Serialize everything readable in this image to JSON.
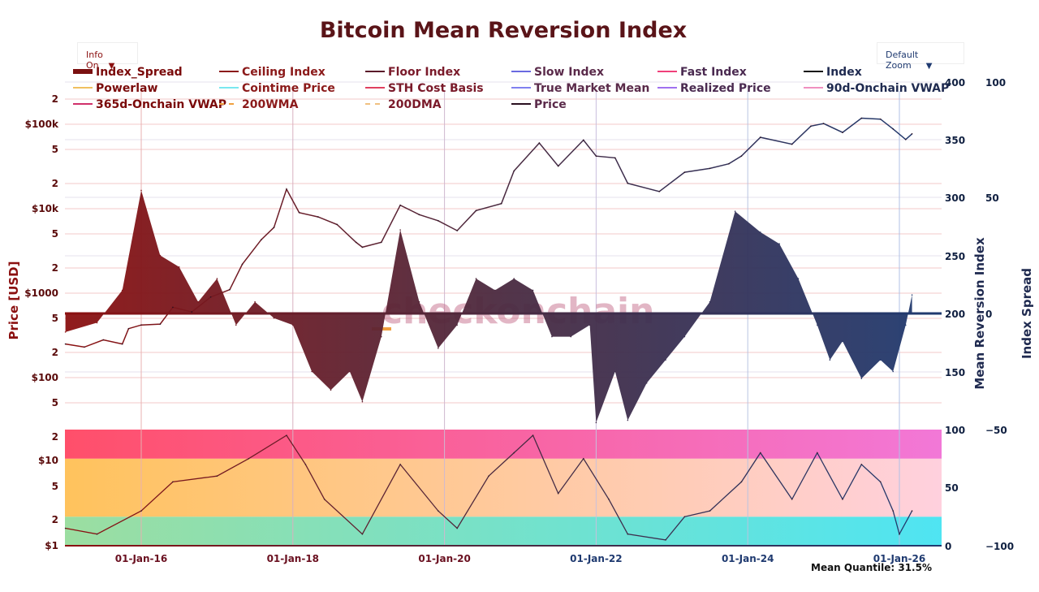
{
  "title": "Bitcoin Mean Reversion Index",
  "controls": {
    "info_label": "Info On",
    "zoom_label": "Default Zoom",
    "arrow": "▼"
  },
  "watermark": "checkonchain",
  "footer": {
    "mean_quantile": "Mean Quantile: 31.5%"
  },
  "chart_data": {
    "type": "line",
    "title": "Bitcoin Mean Reversion Index",
    "legend": {
      "placement": "top",
      "entries": [
        {
          "name": "Index_Spread",
          "color": "#7a1010",
          "style": "fill"
        },
        {
          "name": "Ceiling Index",
          "color": "#8b1a1a",
          "style": "solid"
        },
        {
          "name": "Floor Index",
          "color": "#5a1a2a",
          "style": "solid"
        },
        {
          "name": "Slow Index",
          "color": "#6a6ae0",
          "style": "solid"
        },
        {
          "name": "Fast Index",
          "color": "#f0407a",
          "style": "solid"
        },
        {
          "name": "Index",
          "color": "#111111",
          "style": "solid"
        },
        {
          "name": "Powerlaw",
          "color": "#f0c060",
          "style": "solid"
        },
        {
          "name": "Cointime Price",
          "color": "#7ae8f0",
          "style": "solid"
        },
        {
          "name": "STH Cost Basis",
          "color": "#e04060",
          "style": "solid"
        },
        {
          "name": "True Market Mean",
          "color": "#8080f0",
          "style": "solid"
        },
        {
          "name": "Realized Price",
          "color": "#a070f0",
          "style": "solid"
        },
        {
          "name": "90d-Onchain VWAP",
          "color": "#f090c0",
          "style": "solid"
        },
        {
          "name": "365d-Onchain VWAP",
          "color": "#d0306a",
          "style": "solid"
        },
        {
          "name": "200WMA",
          "color": "#f0a040",
          "style": "dash"
        },
        {
          "name": "200DMA",
          "color": "#f0c080",
          "style": "dash"
        },
        {
          "name": "Price",
          "color": "#2a1020",
          "style": "solid"
        }
      ]
    },
    "x_axis": {
      "type": "date",
      "range": [
        "2015-01",
        "2026-07"
      ],
      "tick_labels": [
        "01-Jan-16",
        "01-Jan-18",
        "01-Jan-20",
        "01-Jan-22",
        "01-Jan-24",
        "01-Jan-26"
      ]
    },
    "y_axes": {
      "price": {
        "label": "Price [USD]",
        "scale": "log",
        "top_ticks": [
          "2",
          "$100k",
          "5",
          "2",
          "$10k",
          "5",
          "2",
          "$1000",
          "5",
          "2",
          "$100",
          "5"
        ],
        "bottom_ticks": [
          "2",
          "$10",
          "5",
          "2",
          "$1"
        ]
      },
      "mean_reversion_index": {
        "label": "Mean Reversion Index",
        "ticks": [
          "400",
          "350",
          "300",
          "250",
          "200",
          "150",
          "100",
          "50",
          "0"
        ]
      },
      "index_spread": {
        "label": "Index Spread",
        "ticks": [
          "100",
          "50",
          "0",
          "−50",
          "−100"
        ],
        "range": [
          -100,
          100
        ]
      }
    },
    "series": [
      {
        "name": "Price",
        "unit": "USD",
        "points": [
          [
            "2015-01",
            250
          ],
          [
            "2015-04",
            230
          ],
          [
            "2015-07",
            280
          ],
          [
            "2015-10",
            250
          ],
          [
            "2015-11",
            380
          ],
          [
            "2016-01",
            420
          ],
          [
            "2016-04",
            430
          ],
          [
            "2016-06",
            680
          ],
          [
            "2016-09",
            600
          ],
          [
            "2016-12",
            900
          ],
          [
            "2017-03",
            1100
          ],
          [
            "2017-05",
            2200
          ],
          [
            "2017-08",
            4300
          ],
          [
            "2017-10",
            6000
          ],
          [
            "2017-12",
            17000
          ],
          [
            "2018-02",
            9000
          ],
          [
            "2018-05",
            8000
          ],
          [
            "2018-08",
            6500
          ],
          [
            "2018-11",
            4000
          ],
          [
            "2018-12",
            3500
          ],
          [
            "2019-03",
            4000
          ],
          [
            "2019-06",
            11000
          ],
          [
            "2019-09",
            8500
          ],
          [
            "2019-12",
            7200
          ],
          [
            "2020-03",
            5500
          ],
          [
            "2020-06",
            9500
          ],
          [
            "2020-10",
            11500
          ],
          [
            "2020-12",
            28000
          ],
          [
            "2021-04",
            60000
          ],
          [
            "2021-07",
            32000
          ],
          [
            "2021-11",
            65000
          ],
          [
            "2022-01",
            42000
          ],
          [
            "2022-04",
            40000
          ],
          [
            "2022-06",
            20000
          ],
          [
            "2022-11",
            16000
          ],
          [
            "2023-03",
            27000
          ],
          [
            "2023-07",
            30000
          ],
          [
            "2023-10",
            34000
          ],
          [
            "2023-12",
            42000
          ],
          [
            "2024-03",
            70000
          ],
          [
            "2024-08",
            58000
          ],
          [
            "2024-11",
            95000
          ],
          [
            "2025-01",
            102000
          ],
          [
            "2025-04",
            80000
          ],
          [
            "2025-07",
            118000
          ],
          [
            "2025-10",
            115000
          ],
          [
            "2025-12",
            88000
          ],
          [
            "2026-02",
            66000
          ],
          [
            "2026-03",
            77000
          ]
        ]
      },
      {
        "name": "Index_Spread",
        "points": [
          [
            "2015-01",
            -8
          ],
          [
            "2015-06",
            -4
          ],
          [
            "2015-10",
            10
          ],
          [
            "2016-01",
            53
          ],
          [
            "2016-04",
            25
          ],
          [
            "2016-07",
            20
          ],
          [
            "2016-10",
            5
          ],
          [
            "2017-01",
            15
          ],
          [
            "2017-04",
            -5
          ],
          [
            "2017-07",
            5
          ],
          [
            "2017-10",
            -2
          ],
          [
            "2018-01",
            -5
          ],
          [
            "2018-04",
            -25
          ],
          [
            "2018-07",
            -33
          ],
          [
            "2018-10",
            -25
          ],
          [
            "2018-12",
            -38
          ],
          [
            "2019-03",
            -10
          ],
          [
            "2019-06",
            36
          ],
          [
            "2019-09",
            5
          ],
          [
            "2019-12",
            -15
          ],
          [
            "2020-03",
            -5
          ],
          [
            "2020-06",
            15
          ],
          [
            "2020-09",
            10
          ],
          [
            "2020-12",
            15
          ],
          [
            "2021-03",
            10
          ],
          [
            "2021-06",
            -10
          ],
          [
            "2021-09",
            -10
          ],
          [
            "2021-12",
            -5
          ],
          [
            "2022-01",
            -47
          ],
          [
            "2022-04",
            -25
          ],
          [
            "2022-06",
            -46
          ],
          [
            "2022-09",
            -30
          ],
          [
            "2022-12",
            -20
          ],
          [
            "2023-03",
            -10
          ],
          [
            "2023-07",
            5
          ],
          [
            "2023-11",
            44
          ],
          [
            "2024-03",
            35
          ],
          [
            "2024-06",
            30
          ],
          [
            "2024-09",
            15
          ],
          [
            "2024-12",
            -5
          ],
          [
            "2025-02",
            -20
          ],
          [
            "2025-04",
            -12
          ],
          [
            "2025-07",
            -28
          ],
          [
            "2025-10",
            -20
          ],
          [
            "2025-12",
            -25
          ],
          [
            "2026-02",
            -5
          ],
          [
            "2026-03",
            8
          ]
        ]
      },
      {
        "name": "Quantile",
        "points": [
          [
            "2015-01",
            15
          ],
          [
            "2015-06",
            10
          ],
          [
            "2016-01",
            30
          ],
          [
            "2016-06",
            55
          ],
          [
            "2017-01",
            60
          ],
          [
            "2017-06",
            75
          ],
          [
            "2017-12",
            95
          ],
          [
            "2018-03",
            70
          ],
          [
            "2018-06",
            40
          ],
          [
            "2018-12",
            10
          ],
          [
            "2019-06",
            70
          ],
          [
            "2019-12",
            30
          ],
          [
            "2020-03",
            15
          ],
          [
            "2020-08",
            60
          ],
          [
            "2020-12",
            80
          ],
          [
            "2021-03",
            95
          ],
          [
            "2021-07",
            45
          ],
          [
            "2021-11",
            75
          ],
          [
            "2022-03",
            40
          ],
          [
            "2022-06",
            10
          ],
          [
            "2022-12",
            5
          ],
          [
            "2023-03",
            25
          ],
          [
            "2023-07",
            30
          ],
          [
            "2023-12",
            55
          ],
          [
            "2024-03",
            80
          ],
          [
            "2024-08",
            40
          ],
          [
            "2024-12",
            80
          ],
          [
            "2025-04",
            40
          ],
          [
            "2025-07",
            70
          ],
          [
            "2025-10",
            55
          ],
          [
            "2025-12",
            30
          ],
          [
            "2026-01",
            10
          ],
          [
            "2026-03",
            30
          ]
        ]
      }
    ],
    "bands": [
      {
        "from": 0,
        "to": 25,
        "color_start": "#7ad8a0",
        "color_end": "#30e0f0"
      },
      {
        "from": 25,
        "to": 75,
        "color_start": "#ffb840",
        "color_end": "#ffc8d8"
      },
      {
        "from": 75,
        "to": 100,
        "color_start": "#ff3050",
        "color_end": "#f060d0"
      }
    ],
    "colors": {
      "start": "#8b1010",
      "end": "#1f3a70"
    },
    "grid": true
  }
}
